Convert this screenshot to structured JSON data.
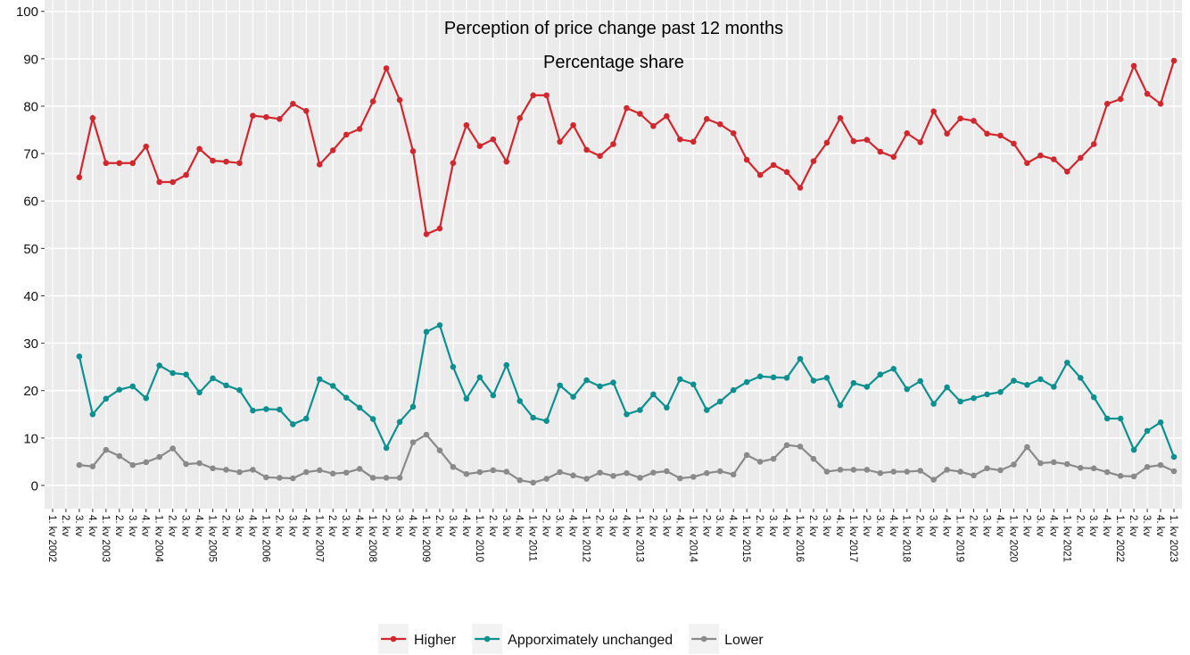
{
  "chart_data": {
    "type": "line",
    "title": "Perception of price change past 12 months",
    "subtitle": "Percentage share",
    "categories": [
      "1. kv 2002",
      "2. kv",
      "3. kv",
      "4. kv",
      "1. kv 2003",
      "2. kv",
      "3. kv",
      "4. kv",
      "1. kv 2004",
      "2. kv",
      "3. kv",
      "4. kv",
      "1. kv 2005",
      "2. kv",
      "3. kv",
      "4. kv",
      "1. kv 2006",
      "2. kv",
      "3. kv",
      "4. kv",
      "1. kv 2007",
      "2. kv",
      "3. kv",
      "4. kv",
      "1. kv 2008",
      "2. kv",
      "3. kv",
      "4. kv",
      "1. kv 2009",
      "2. kv",
      "3. kv",
      "4. kv",
      "1. kv 2010",
      "2. kv",
      "3. kv",
      "4. kv",
      "1. kv 2011",
      "2. kv",
      "3. kv",
      "4. kv",
      "1. kv 2012",
      "2. kv",
      "3. kv",
      "4. kv",
      "1. kv 2013",
      "2. kv",
      "3. kv",
      "4. kv",
      "1. kv 2014",
      "2. kv",
      "3. kv",
      "4. kv",
      "1. kv 2015",
      "2. kv",
      "3. kv",
      "4. kv",
      "1. kv 2016",
      "2. kv",
      "3. kv",
      "4. kv",
      "1. kv 2017",
      "2. kv",
      "3. kv",
      "4. kv",
      "1. kv 2018",
      "2. kv",
      "3. kv",
      "4. kv",
      "1. kv 2019",
      "2. kv",
      "3. kv",
      "4. kv",
      "1. kv 2020",
      "2. kv",
      "3. kv",
      "4. kv",
      "1. kv 2021",
      "2. kv",
      "3. kv",
      "4. kv",
      "1. kv 2022",
      "2. kv",
      "3. kv",
      "4. kv",
      "1. kv 2023"
    ],
    "series": [
      {
        "name": "Higher",
        "color": "#d0282e",
        "values": [
          null,
          null,
          65,
          77.5,
          68,
          68,
          68,
          71.5,
          64,
          64,
          65.5,
          71,
          68.5,
          68.3,
          68,
          78,
          77.7,
          77.3,
          80.5,
          79,
          67.7,
          70.7,
          74,
          75.2,
          81,
          88,
          81.3,
          70.5,
          53,
          54.2,
          68,
          76,
          71.6,
          73,
          68.3,
          77.5,
          82.3,
          82.3,
          72.5,
          76,
          70.8,
          69.5,
          72,
          79.6,
          78.4,
          75.8,
          77.9,
          73,
          72.5,
          77.3,
          76.2,
          74.3,
          68.7,
          65.5,
          67.6,
          66.1,
          62.8,
          68.4,
          72.3,
          77.5,
          72.6,
          72.9,
          70.4,
          69.3,
          74.3,
          72.4,
          78.9,
          74.2,
          77.4,
          76.9,
          74.2,
          73.8,
          72.1,
          68,
          69.6,
          68.8,
          66.2,
          69.1,
          72,
          80.5,
          81.5,
          88.5,
          82.6,
          80.5,
          89.6
        ]
      },
      {
        "name": "Apporximately unchanged",
        "color": "#0e9090",
        "values": [
          null,
          null,
          27.2,
          15,
          18.3,
          20.2,
          20.9,
          18.4,
          25.3,
          23.7,
          23.4,
          19.6,
          22.6,
          21.1,
          20.1,
          15.8,
          16.1,
          16,
          12.9,
          14.1,
          22.4,
          21,
          18.5,
          16.4,
          14,
          7.9,
          13.4,
          16.6,
          32.4,
          33.8,
          25,
          18.3,
          22.8,
          19,
          25.4,
          17.8,
          14.3,
          13.6,
          21.1,
          18.7,
          22.2,
          20.9,
          21.7,
          15,
          15.9,
          19.2,
          16.4,
          22.4,
          21.3,
          15.9,
          17.7,
          20.1,
          21.8,
          23,
          22.8,
          22.7,
          26.7,
          22.1,
          22.7,
          16.9,
          21.6,
          20.8,
          23.4,
          24.6,
          20.3,
          22,
          17.2,
          20.7,
          17.7,
          18.4,
          19.2,
          19.7,
          22.1,
          21.2,
          22.4,
          20.8,
          25.9,
          22.7,
          18.6,
          14.1,
          14.1,
          7.5,
          11.5,
          13.3,
          6
        ]
      },
      {
        "name": "Lower",
        "color": "#8a8a8a",
        "values": [
          null,
          null,
          4.3,
          4,
          7.5,
          6.2,
          4.3,
          4.9,
          6,
          7.8,
          4.5,
          4.7,
          3.6,
          3.3,
          2.8,
          3.3,
          1.7,
          1.6,
          1.5,
          2.8,
          3.2,
          2.5,
          2.7,
          3.5,
          1.6,
          1.6,
          1.6,
          9.1,
          10.7,
          7.4,
          3.9,
          2.4,
          2.8,
          3.2,
          2.9,
          1.1,
          0.6,
          1.4,
          2.8,
          2.1,
          1.4,
          2.7,
          2,
          2.6,
          1.6,
          2.7,
          3,
          1.5,
          1.8,
          2.6,
          3,
          2.3,
          6.4,
          5,
          5.6,
          8.5,
          8.2,
          5.6,
          2.9,
          3.3,
          3.3,
          3.3,
          2.6,
          2.9,
          2.9,
          3.1,
          1.2,
          3.3,
          2.9,
          2.1,
          3.6,
          3.2,
          4.4,
          8.1,
          4.7,
          4.9,
          4.5,
          3.7,
          3.6,
          2.8,
          2,
          1.9,
          3.9,
          4.3,
          3
        ]
      }
    ],
    "ylim": [
      -4.9,
      102.4
    ],
    "yticks": [
      0,
      10,
      20,
      30,
      40,
      50,
      60,
      70,
      80,
      90,
      100
    ],
    "grid": true,
    "legend": "bottom"
  }
}
